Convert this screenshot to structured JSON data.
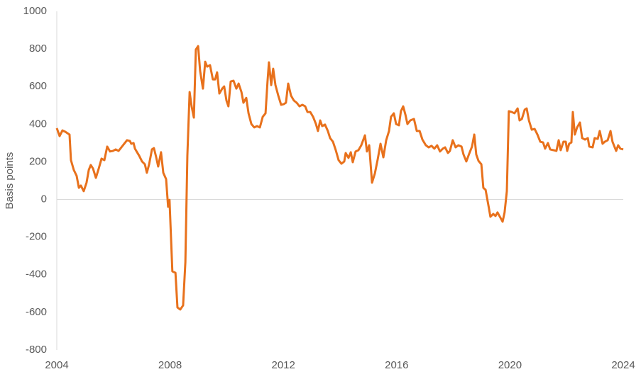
{
  "chart_data": {
    "type": "line",
    "ylabel": "Basis points",
    "xlim": [
      2004,
      2024
    ],
    "xticks": [
      2004,
      2008,
      2012,
      2016,
      2020,
      2024
    ],
    "ylim": [
      -800,
      1000
    ],
    "yticks": [
      -800,
      -600,
      -400,
      -200,
      0,
      200,
      400,
      600,
      800,
      1000
    ],
    "x": [
      2004.0,
      2004.1,
      2004.2,
      2004.3,
      2004.45,
      2004.5,
      2004.6,
      2004.7,
      2004.78,
      2004.85,
      2004.95,
      2005.05,
      2005.13,
      2005.2,
      2005.28,
      2005.38,
      2005.48,
      2005.58,
      2005.68,
      2005.78,
      2005.88,
      2005.98,
      2006.08,
      2006.18,
      2006.28,
      2006.38,
      2006.48,
      2006.58,
      2006.63,
      2006.71,
      2006.76,
      2006.91,
      2007.01,
      2007.11,
      2007.18,
      2007.26,
      2007.36,
      2007.43,
      2007.51,
      2007.58,
      2007.68,
      2007.76,
      2007.86,
      2007.93,
      2007.98,
      2008.08,
      2008.19,
      2008.26,
      2008.36,
      2008.46,
      2008.54,
      2008.61,
      2008.69,
      2008.76,
      2008.84,
      2008.91,
      2008.99,
      2009.06,
      2009.16,
      2009.24,
      2009.31,
      2009.41,
      2009.51,
      2009.59,
      2009.66,
      2009.74,
      2009.84,
      2009.91,
      2009.99,
      2010.06,
      2010.14,
      2010.24,
      2010.34,
      2010.42,
      2010.52,
      2010.59,
      2010.69,
      2010.77,
      2010.87,
      2010.97,
      2011.07,
      2011.17,
      2011.27,
      2011.37,
      2011.44,
      2011.49,
      2011.57,
      2011.64,
      2011.72,
      2011.82,
      2011.92,
      2012.02,
      2012.09,
      2012.17,
      2012.27,
      2012.37,
      2012.47,
      2012.57,
      2012.67,
      2012.77,
      2012.85,
      2012.95,
      2013.05,
      2013.15,
      2013.22,
      2013.3,
      2013.37,
      2013.47,
      2013.57,
      2013.65,
      2013.75,
      2013.85,
      2013.95,
      2014.05,
      2014.15,
      2014.2,
      2014.3,
      2014.38,
      2014.45,
      2014.55,
      2014.65,
      2014.75,
      2014.88,
      2014.95,
      2015.03,
      2015.13,
      2015.23,
      2015.33,
      2015.43,
      2015.53,
      2015.63,
      2015.73,
      2015.8,
      2015.9,
      2015.98,
      2016.08,
      2016.15,
      2016.23,
      2016.31,
      2016.38,
      2016.48,
      2016.61,
      2016.71,
      2016.81,
      2016.91,
      2017.03,
      2017.13,
      2017.23,
      2017.33,
      2017.43,
      2017.53,
      2017.63,
      2017.71,
      2017.81,
      2017.88,
      2017.98,
      2018.08,
      2018.18,
      2018.29,
      2018.36,
      2018.46,
      2018.56,
      2018.66,
      2018.74,
      2018.81,
      2018.89,
      2018.99,
      2019.06,
      2019.14,
      2019.24,
      2019.31,
      2019.41,
      2019.49,
      2019.56,
      2019.66,
      2019.74,
      2019.81,
      2019.89,
      2019.96,
      2020.06,
      2020.16,
      2020.27,
      2020.34,
      2020.42,
      2020.52,
      2020.59,
      2020.67,
      2020.77,
      2020.87,
      2020.97,
      2021.07,
      2021.17,
      2021.24,
      2021.34,
      2021.42,
      2021.54,
      2021.64,
      2021.72,
      2021.79,
      2021.89,
      2021.97,
      2022.02,
      2022.09,
      2022.17,
      2022.22,
      2022.29,
      2022.37,
      2022.47,
      2022.55,
      2022.65,
      2022.75,
      2022.8,
      2022.92,
      2022.99,
      2023.1,
      2023.17,
      2023.27,
      2023.35,
      2023.45,
      2023.55,
      2023.62,
      2023.75,
      2023.82,
      2023.9,
      2024.0
    ],
    "series": [
      {
        "name": "Basis points",
        "color": "#e8711c",
        "values": [
          379,
          337,
          367,
          360,
          345,
          209,
          157,
          126,
          62,
          74,
          44,
          89,
          157,
          183,
          164,
          115,
          164,
          217,
          209,
          281,
          255,
          258,
          266,
          258,
          277,
          296,
          315,
          311,
          296,
          300,
          270,
          232,
          202,
          187,
          142,
          187,
          266,
          273,
          224,
          175,
          251,
          142,
          108,
          -39,
          -2,
          -382,
          -390,
          -574,
          -585,
          -563,
          -333,
          232,
          571,
          495,
          435,
          797,
          815,
          684,
          589,
          732,
          706,
          714,
          638,
          638,
          676,
          563,
          589,
          601,
          526,
          495,
          627,
          631,
          589,
          616,
          571,
          514,
          540,
          458,
          401,
          383,
          390,
          383,
          439,
          458,
          627,
          729,
          608,
          695,
          608,
          552,
          503,
          507,
          514,
          616,
          552,
          526,
          514,
          495,
          503,
          495,
          465,
          465,
          439,
          401,
          364,
          420,
          390,
          398,
          364,
          326,
          307,
          262,
          209,
          190,
          202,
          247,
          221,
          251,
          198,
          255,
          262,
          288,
          341,
          255,
          288,
          89,
          138,
          213,
          296,
          224,
          315,
          364,
          439,
          458,
          401,
          394,
          469,
          495,
          450,
          401,
          420,
          428,
          364,
          364,
          318,
          288,
          277,
          285,
          270,
          288,
          255,
          270,
          277,
          247,
          258,
          315,
          277,
          288,
          281,
          239,
          202,
          243,
          281,
          345,
          239,
          205,
          187,
          62,
          51,
          -32,
          -92,
          -77,
          -88,
          -69,
          -96,
          -118,
          -69,
          44,
          469,
          465,
          458,
          484,
          420,
          428,
          477,
          484,
          420,
          371,
          375,
          345,
          307,
          303,
          270,
          300,
          266,
          262,
          258,
          315,
          262,
          307,
          307,
          258,
          296,
          303,
          465,
          345,
          383,
          409,
          326,
          318,
          326,
          281,
          277,
          326,
          322,
          364,
          296,
          307,
          315,
          364,
          307,
          258,
          288,
          270,
          266
        ]
      }
    ]
  }
}
